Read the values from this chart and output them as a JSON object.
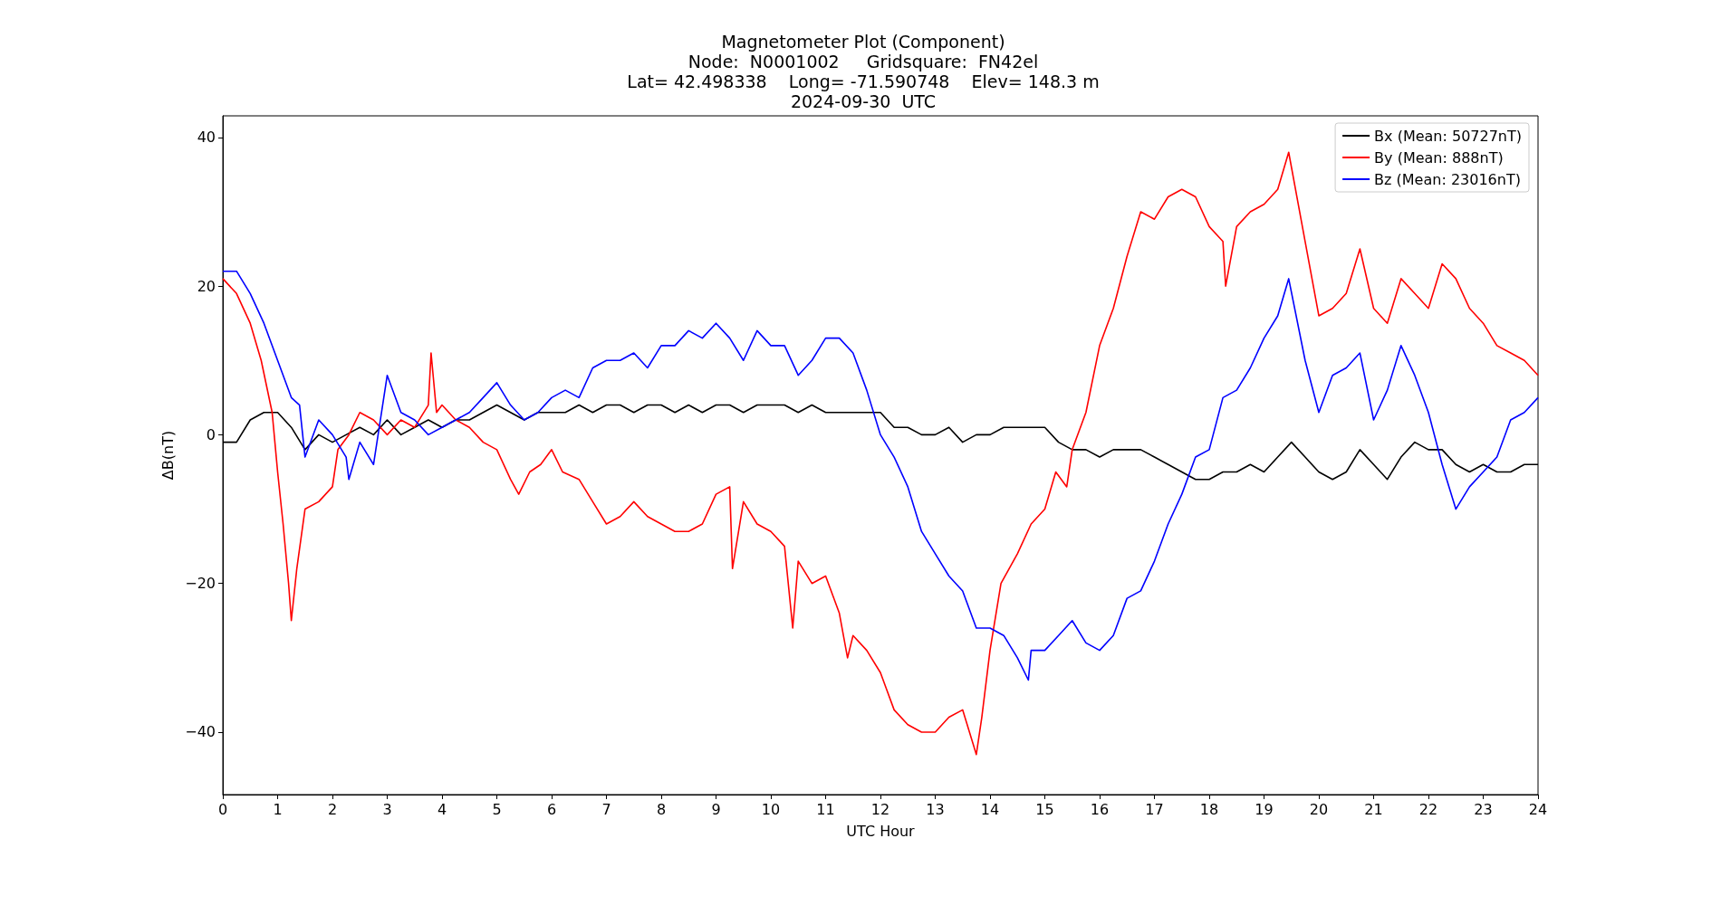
{
  "chart_data": {
    "type": "line",
    "title": "Magnetometer Plot (Component)\nNode:  N0001002     Gridsquare:  FN42el\nLat= 42.498338    Long= -71.590748    Elev= 148.3 m\n2024-09-30  UTC",
    "xlabel": "UTC Hour",
    "ylabel": "ΔB(nT)",
    "xlim": [
      0,
      24
    ],
    "xticks": [
      0,
      1,
      2,
      3,
      4,
      5,
      6,
      7,
      8,
      9,
      10,
      11,
      12,
      13,
      14,
      15,
      16,
      17,
      18,
      19,
      20,
      21,
      22,
      23,
      24
    ],
    "ylim": [
      -48.4,
      42.9
    ],
    "yticks": [
      -40,
      -20,
      0,
      20,
      40
    ],
    "grid": false,
    "legend": "top right",
    "marker": "none",
    "line_style": "solid",
    "series": [
      {
        "name": "Bx (Mean: 50727nT)",
        "color": "#000000",
        "x": [
          0,
          0.25,
          0.5,
          0.75,
          1,
          1.25,
          1.5,
          1.75,
          2,
          2.25,
          2.5,
          2.75,
          3,
          3.25,
          3.5,
          3.75,
          4,
          4.25,
          4.5,
          4.75,
          5,
          5.25,
          5.5,
          5.75,
          6,
          6.25,
          6.5,
          6.75,
          7,
          7.25,
          7.5,
          7.75,
          8,
          8.25,
          8.5,
          8.75,
          9,
          9.25,
          9.5,
          9.75,
          10,
          10.25,
          10.5,
          10.75,
          11,
          11.25,
          11.5,
          11.75,
          12,
          12.25,
          12.5,
          12.75,
          13,
          13.25,
          13.5,
          13.75,
          14,
          14.25,
          14.5,
          14.75,
          15,
          15.25,
          15.5,
          15.75,
          16,
          16.25,
          16.5,
          16.75,
          17,
          17.25,
          17.5,
          17.75,
          18,
          18.25,
          18.5,
          18.75,
          19,
          19.25,
          19.5,
          19.75,
          20,
          20.25,
          20.5,
          20.75,
          21,
          21.25,
          21.5,
          21.75,
          22,
          22.25,
          22.5,
          22.75,
          23,
          23.25,
          23.5,
          23.75,
          24
        ],
        "values": [
          -1,
          -1,
          2,
          3,
          3,
          1,
          -2,
          0,
          -1,
          0,
          1,
          0,
          2,
          0,
          1,
          2,
          1,
          2,
          2,
          3,
          4,
          3,
          2,
          3,
          3,
          3,
          4,
          3,
          4,
          4,
          3,
          4,
          4,
          3,
          4,
          3,
          4,
          4,
          3,
          4,
          4,
          4,
          3,
          4,
          3,
          3,
          3,
          3,
          3,
          1,
          1,
          0,
          0,
          1,
          -1,
          0,
          0,
          1,
          1,
          1,
          1,
          -1,
          -2,
          -2,
          -3,
          -2,
          -2,
          -2,
          -3,
          -4,
          -5,
          -6,
          -6,
          -5,
          -5,
          -4,
          -5,
          -3,
          -1,
          -3,
          -5,
          -6,
          -5,
          -2,
          -4,
          -6,
          -3,
          -1,
          -2,
          -2,
          -4,
          -5,
          -4,
          -5,
          -5,
          -4,
          -4
        ]
      },
      {
        "name": "By (Mean: 888nT)",
        "color": "#ff0000",
        "x": [
          0,
          0.25,
          0.5,
          0.7,
          0.9,
          1,
          1.1,
          1.2,
          1.25,
          1.35,
          1.5,
          1.75,
          2,
          2.1,
          2.3,
          2.5,
          2.75,
          3,
          3.25,
          3.5,
          3.75,
          3.8,
          3.9,
          4,
          4.25,
          4.5,
          4.75,
          5,
          5.25,
          5.4,
          5.6,
          5.8,
          6,
          6.2,
          6.5,
          6.75,
          7,
          7.25,
          7.5,
          7.75,
          8,
          8.25,
          8.5,
          8.75,
          9,
          9.25,
          9.3,
          9.5,
          9.75,
          10,
          10.25,
          10.4,
          10.5,
          10.75,
          11,
          11.25,
          11.4,
          11.5,
          11.75,
          12,
          12.25,
          12.5,
          12.75,
          13,
          13.25,
          13.5,
          13.75,
          13.85,
          14,
          14.2,
          14.5,
          14.75,
          15,
          15.2,
          15.4,
          15.5,
          15.75,
          16,
          16.25,
          16.5,
          16.75,
          17,
          17.25,
          17.5,
          17.75,
          18,
          18.25,
          18.3,
          18.5,
          18.75,
          19,
          19.25,
          19.45,
          19.75,
          20,
          20.25,
          20.5,
          20.75,
          21,
          21.25,
          21.5,
          21.75,
          22,
          22.25,
          22.5,
          22.75,
          23,
          23.25,
          23.5,
          23.75,
          24
        ],
        "values": [
          21,
          19,
          15,
          10,
          3,
          -5,
          -12,
          -20,
          -25,
          -18,
          -10,
          -9,
          -7,
          -2,
          0,
          3,
          2,
          0,
          2,
          1,
          4,
          11,
          3,
          4,
          2,
          1,
          -1,
          -2,
          -6,
          -8,
          -5,
          -4,
          -2,
          -5,
          -6,
          -9,
          -12,
          -11,
          -9,
          -11,
          -12,
          -13,
          -13,
          -12,
          -8,
          -7,
          -18,
          -9,
          -12,
          -13,
          -15,
          -26,
          -17,
          -20,
          -19,
          -24,
          -30,
          -27,
          -29,
          -32,
          -37,
          -39,
          -40,
          -40,
          -38,
          -37,
          -43,
          -38,
          -29,
          -20,
          -16,
          -12,
          -10,
          -5,
          -7,
          -2,
          3,
          12,
          17,
          24,
          30,
          29,
          32,
          33,
          32,
          28,
          26,
          20,
          28,
          30,
          31,
          33,
          38,
          26,
          16,
          17,
          19,
          25,
          17,
          15,
          21,
          19,
          17,
          23,
          21,
          17,
          15,
          12,
          11,
          10,
          8
        ]
      },
      {
        "name": "Bz (Mean: 23016nT)",
        "color": "#0000ff",
        "x": [
          0,
          0.25,
          0.5,
          0.75,
          1,
          1.25,
          1.4,
          1.5,
          1.75,
          2,
          2.25,
          2.3,
          2.5,
          2.75,
          3,
          3.25,
          3.5,
          3.75,
          4,
          4.25,
          4.5,
          4.75,
          5,
          5.25,
          5.5,
          5.75,
          6,
          6.25,
          6.5,
          6.75,
          7,
          7.25,
          7.5,
          7.75,
          8,
          8.25,
          8.5,
          8.75,
          9,
          9.25,
          9.5,
          9.75,
          10,
          10.25,
          10.5,
          10.75,
          11,
          11.25,
          11.5,
          11.75,
          12,
          12.25,
          12.5,
          12.75,
          13,
          13.25,
          13.5,
          13.75,
          14,
          14.25,
          14.5,
          14.7,
          14.75,
          15,
          15.25,
          15.5,
          15.75,
          16,
          16.25,
          16.5,
          16.75,
          17,
          17.25,
          17.5,
          17.75,
          18,
          18.25,
          18.5,
          18.75,
          19,
          19.25,
          19.45,
          19.75,
          20,
          20.25,
          20.5,
          20.75,
          21,
          21.25,
          21.5,
          21.75,
          22,
          22.25,
          22.5,
          22.75,
          23,
          23.25,
          23.5,
          23.75,
          24
        ],
        "values": [
          22,
          22,
          19,
          15,
          10,
          5,
          4,
          -3,
          2,
          0,
          -3,
          -6,
          -1,
          -4,
          8,
          3,
          2,
          0,
          1,
          2,
          3,
          5,
          7,
          4,
          2,
          3,
          5,
          6,
          5,
          9,
          10,
          10,
          11,
          9,
          12,
          12,
          14,
          13,
          15,
          13,
          10,
          14,
          12,
          12,
          8,
          10,
          13,
          13,
          11,
          6,
          0,
          -3,
          -7,
          -13,
          -16,
          -19,
          -21,
          -26,
          -26,
          -27,
          -30,
          -33,
          -29,
          -29,
          -27,
          -25,
          -28,
          -29,
          -27,
          -22,
          -21,
          -17,
          -12,
          -8,
          -3,
          -2,
          5,
          6,
          9,
          13,
          16,
          21,
          10,
          3,
          8,
          9,
          11,
          2,
          6,
          12,
          8,
          3,
          -4,
          -10,
          -7,
          -5,
          -3,
          2,
          3,
          5
        ]
      }
    ]
  }
}
